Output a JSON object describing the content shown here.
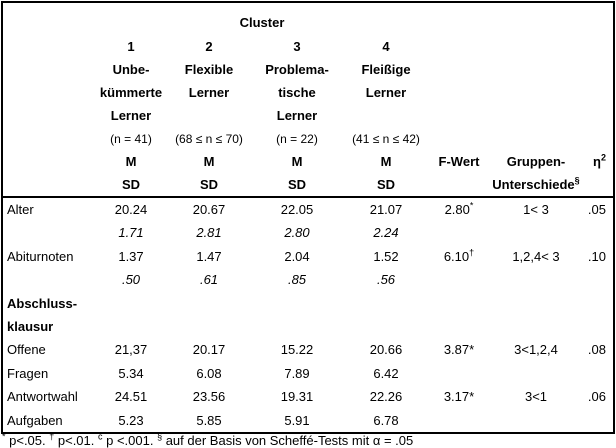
{
  "table": {
    "cluster_title": "Cluster",
    "header": {
      "cols": [
        {
          "lines": [
            "1",
            "Unbe-",
            "kümmerte",
            "Lerner"
          ],
          "n": "(n = 41)"
        },
        {
          "lines": [
            "2",
            "Flexible",
            "Lerner",
            ""
          ],
          "n": "(68 ≤ n ≤ 70)"
        },
        {
          "lines": [
            "3",
            "Problema-",
            "tische",
            "Lerner"
          ],
          "n": "(n = 22)"
        },
        {
          "lines": [
            "4",
            "Fleißige",
            "Lerner",
            ""
          ],
          "n": "(41 ≤ n ≤ 42)"
        }
      ],
      "m_label": "M",
      "sd_label": "SD",
      "f_label": "F-Wert",
      "group_label_line1": "Gruppen-",
      "group_label_line2": "Unterschiede",
      "group_label_sup": "§",
      "eta_label": "η",
      "eta_sup": "2"
    },
    "rows": [
      {
        "label": "Alter",
        "c1": "20.24",
        "c2": "20.67",
        "c3": "22.05",
        "c4": "21.07",
        "f": "2.80",
        "f_sup": "*",
        "group": "1< 3",
        "eta": ".05"
      },
      {
        "label": "",
        "c1": "1.71",
        "c2": "2.81",
        "c3": "2.80",
        "c4": "2.24",
        "f": "",
        "f_sup": "",
        "group": "",
        "eta": ""
      },
      {
        "label": "Abiturnoten",
        "c1": "1.37",
        "c2": "1.47",
        "c3": "2.04",
        "c4": "1.52",
        "f": "6.10",
        "f_sup": "†",
        "group": "1,2,4< 3",
        "eta": ".10"
      },
      {
        "label": "",
        "c1": ".50",
        "c2": ".61",
        "c3": ".85",
        "c4": ".56",
        "f": "",
        "f_sup": "",
        "group": "",
        "eta": ""
      },
      {
        "label": "Abschluss-",
        "c1": "",
        "c2": "",
        "c3": "",
        "c4": "",
        "f": "",
        "f_sup": "",
        "group": "",
        "eta": ""
      },
      {
        "label": "klausur",
        "c1": "",
        "c2": "",
        "c3": "",
        "c4": "",
        "f": "",
        "f_sup": "",
        "group": "",
        "eta": ""
      },
      {
        "label": "Offene",
        "c1": "21,37",
        "c2": "20.17",
        "c3": "15.22",
        "c4": "20.66",
        "f": "3.87*",
        "f_sup": "",
        "group": "3<1,2,4",
        "eta": ".08"
      },
      {
        "label": "Fragen",
        "c1": "5.34",
        "c2": "6.08",
        "c3": "7.89",
        "c4": "6.42",
        "f": "",
        "f_sup": "",
        "group": "",
        "eta": ""
      },
      {
        "label": "Antwortwahl",
        "c1": "24.51",
        "c2": "23.56",
        "c3": "19.31",
        "c4": "22.26",
        "f": "3.17*",
        "f_sup": "",
        "group": "3<1",
        "eta": ".06"
      },
      {
        "label": "Aufgaben",
        "c1": "5.23",
        "c2": "5.85",
        "c3": "5.91",
        "c4": "6.78",
        "f": "",
        "f_sup": "",
        "group": "",
        "eta": ""
      }
    ]
  },
  "footnote": {
    "parts": [
      {
        "sup": "*",
        "text": " p<.05. "
      },
      {
        "sup": "†",
        "text": " p<.01. "
      },
      {
        "sup": "c",
        "text": " p <.001. "
      },
      {
        "sup": "§",
        "text": " auf der Basis von Scheffé-Tests mit α = .05"
      }
    ]
  }
}
